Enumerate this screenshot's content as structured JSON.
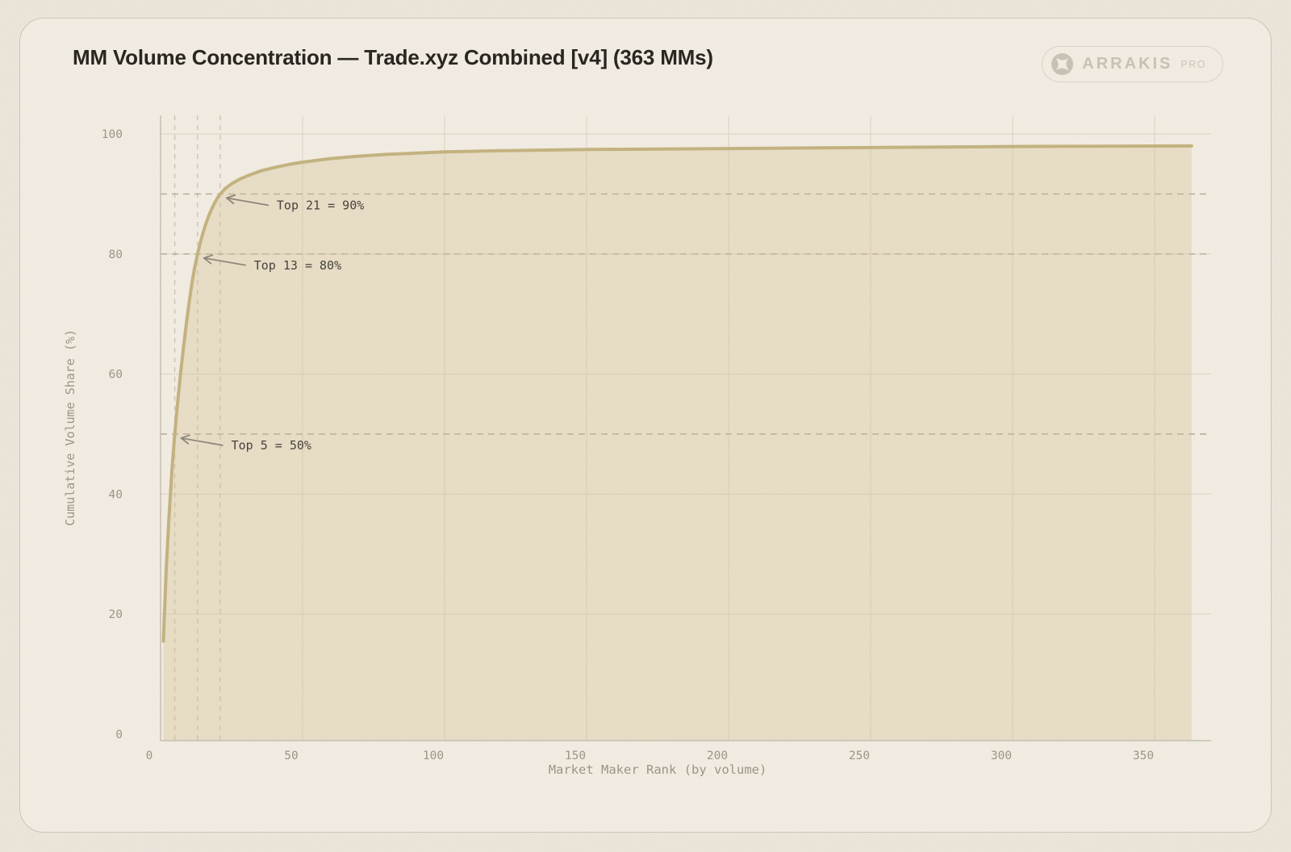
{
  "header": {
    "title": "MM Volume Concentration — Trade.xyz Combined [v4] (363 MMs)",
    "brand": {
      "name": "ARRAKIS",
      "suffix": "PRO"
    }
  },
  "chart_data": {
    "type": "area",
    "title": "MM Volume Concentration — Trade.xyz Combined [v4] (363 MMs)",
    "xlabel": "Market Maker Rank (by volume)",
    "ylabel": "Cumulative Volume Share (%)",
    "total_mms": 363,
    "xlim": [
      0,
      370
    ],
    "ylim": [
      0,
      101
    ],
    "x_ticks": [
      0,
      50,
      100,
      150,
      200,
      250,
      300,
      350
    ],
    "y_ticks": [
      0,
      20,
      40,
      60,
      80,
      100
    ],
    "grid": true,
    "legend": false,
    "series": [
      {
        "name": "Cumulative volume share",
        "points": [
          [
            1,
            15.5
          ],
          [
            2,
            27.5
          ],
          [
            3,
            36.5
          ],
          [
            4,
            44
          ],
          [
            5,
            50
          ],
          [
            6,
            55.2
          ],
          [
            7,
            59.9
          ],
          [
            8,
            64.2
          ],
          [
            9,
            68.1
          ],
          [
            10,
            71.7
          ],
          [
            11,
            75.0
          ],
          [
            12,
            77.7
          ],
          [
            13,
            80.0
          ],
          [
            14,
            81.9
          ],
          [
            15,
            83.6
          ],
          [
            16,
            85.1
          ],
          [
            17,
            86.4
          ],
          [
            18,
            87.5
          ],
          [
            19,
            88.5
          ],
          [
            20,
            89.3
          ],
          [
            21,
            90.0
          ],
          [
            23,
            91.0
          ],
          [
            25,
            91.7
          ],
          [
            28,
            92.5
          ],
          [
            30,
            92.9
          ],
          [
            35,
            93.8
          ],
          [
            40,
            94.4
          ],
          [
            45,
            94.9
          ],
          [
            50,
            95.3
          ],
          [
            60,
            95.9
          ],
          [
            70,
            96.3
          ],
          [
            80,
            96.6
          ],
          [
            90,
            96.8
          ],
          [
            100,
            97.0
          ],
          [
            120,
            97.2
          ],
          [
            150,
            97.4
          ],
          [
            180,
            97.5
          ],
          [
            210,
            97.6
          ],
          [
            240,
            97.7
          ],
          [
            270,
            97.8
          ],
          [
            300,
            97.9
          ],
          [
            330,
            97.95
          ],
          [
            363,
            98.0
          ]
        ]
      }
    ],
    "reference_lines": {
      "horizontal_pct": [
        50,
        80,
        90
      ],
      "vertical_rank": [
        5,
        13,
        21
      ]
    },
    "annotations": [
      {
        "label": "Top 21 = 90%",
        "rank": 21,
        "pct": 90
      },
      {
        "label": "Top 13 = 80%",
        "rank": 13,
        "pct": 80
      },
      {
        "label": "Top 5 = 50%",
        "rank": 5,
        "pct": 50
      }
    ],
    "colors": {
      "page_bg": "#ebe5da",
      "card_bg": "#f2ece2",
      "curve": "#c3b27e",
      "fill": "#d4c08c",
      "grid": "#ded6c7",
      "ref_dash_horizontal": "#b2a794",
      "ref_dash_vertical": "#cdc4b3",
      "spine": "#c6beb0",
      "axis_text": "#9c9384",
      "annotation_text": "#45403a",
      "arrow": "#8d8679",
      "title_text": "#26221c",
      "brand_text": "#c8c1b4"
    }
  }
}
